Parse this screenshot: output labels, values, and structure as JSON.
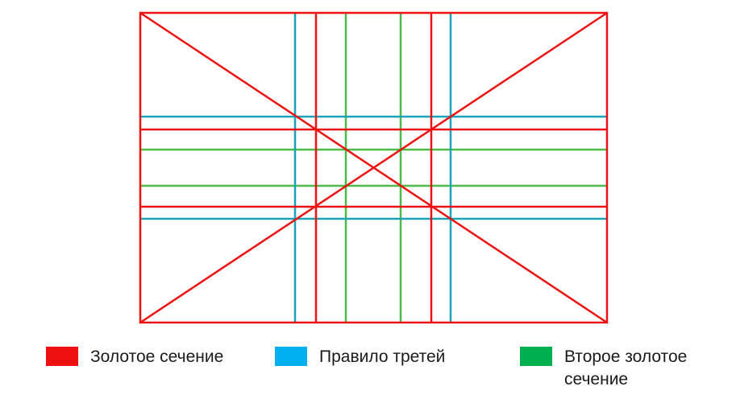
{
  "colors": {
    "golden": "#ee1111",
    "thirds": "#1aa3b8",
    "second_golden": "#4cba48"
  },
  "legend": [
    {
      "label": "Золотое сечение",
      "color": "#ee1111"
    },
    {
      "label": "Правило третей",
      "color": "#00b0f0"
    },
    {
      "label": "Второе золотое сечение",
      "color": "#00b050"
    }
  ]
}
